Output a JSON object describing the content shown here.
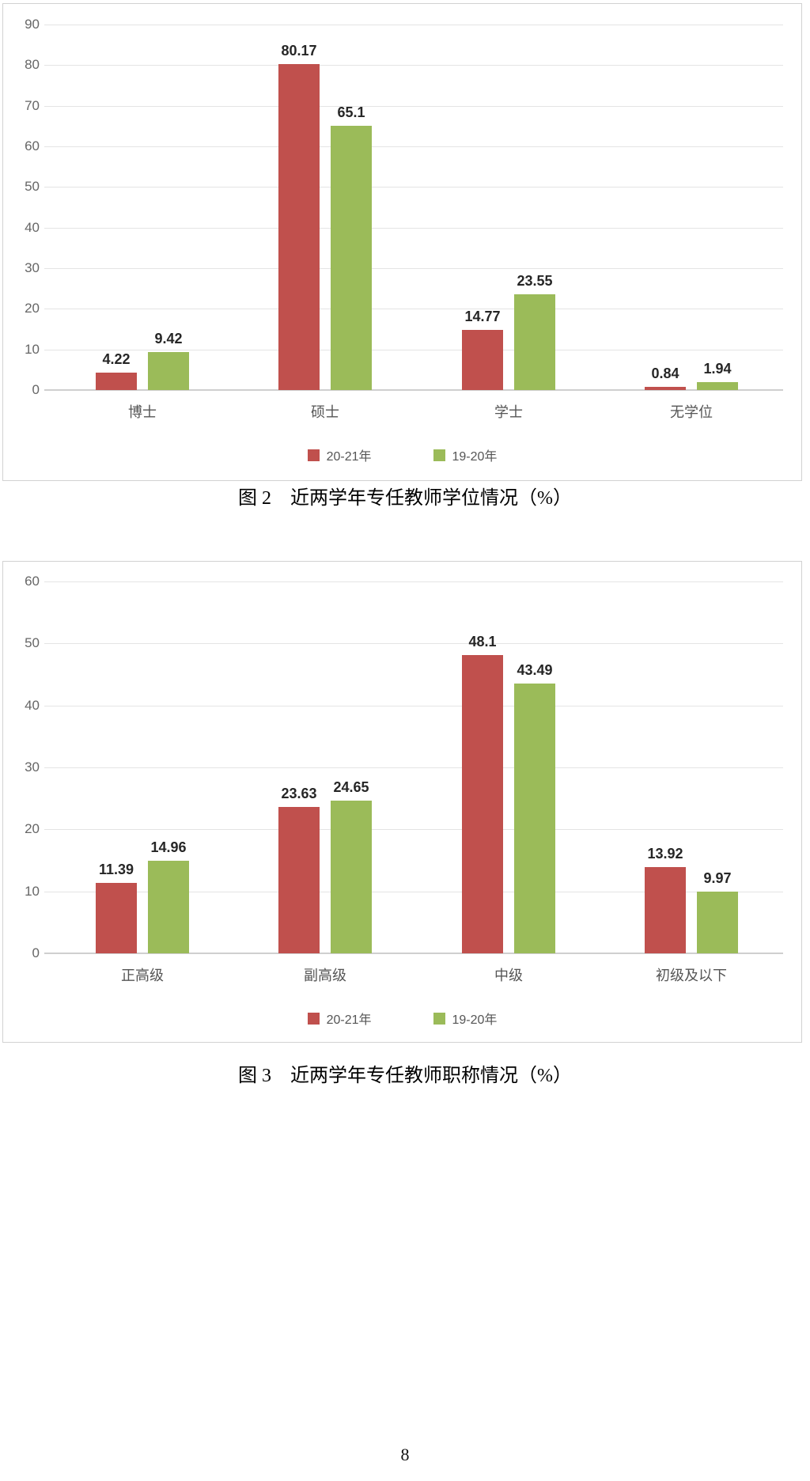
{
  "page": {
    "number": "8"
  },
  "figures": [
    {
      "caption": "图 2　近两学年专任教师学位情况（%）"
    },
    {
      "caption": "图 3　近两学年专任教师职称情况（%）"
    }
  ],
  "colors": {
    "series_20_21": "#c0504d",
    "series_19_20": "#9bbb59",
    "gridline": "#e4e4e4",
    "axis_line": "#cfcfcf",
    "frame_border": "#d2d2d2",
    "tick_text": "#666666",
    "value_text": "#262626"
  },
  "chart_data": [
    {
      "type": "bar",
      "title": "图 2　近两学年专任教师学位情况（%）",
      "categories": [
        "博士",
        "硕士",
        "学士",
        "无学位"
      ],
      "series": [
        {
          "name": "20-21年",
          "color": "#c0504d",
          "values": [
            4.22,
            80.17,
            14.77,
            0.84
          ]
        },
        {
          "name": "19-20年",
          "color": "#9bbb59",
          "values": [
            9.42,
            65.1,
            23.55,
            1.94
          ]
        }
      ],
      "xlabel": "",
      "ylabel": "",
      "ylim": [
        0,
        90
      ],
      "ytick_step": 10,
      "grid": true,
      "value_labels": true,
      "legend_position": "bottom"
    },
    {
      "type": "bar",
      "title": "图 3　近两学年专任教师职称情况（%）",
      "categories": [
        "正高级",
        "副高级",
        "中级",
        "初级及以下"
      ],
      "series": [
        {
          "name": "20-21年",
          "color": "#c0504d",
          "values": [
            11.39,
            23.63,
            48.1,
            13.92
          ]
        },
        {
          "name": "19-20年",
          "color": "#9bbb59",
          "values": [
            14.96,
            24.65,
            43.49,
            9.97
          ]
        }
      ],
      "xlabel": "",
      "ylabel": "",
      "ylim": [
        0,
        60
      ],
      "ytick_step": 10,
      "grid": true,
      "value_labels": true,
      "legend_position": "bottom"
    }
  ]
}
